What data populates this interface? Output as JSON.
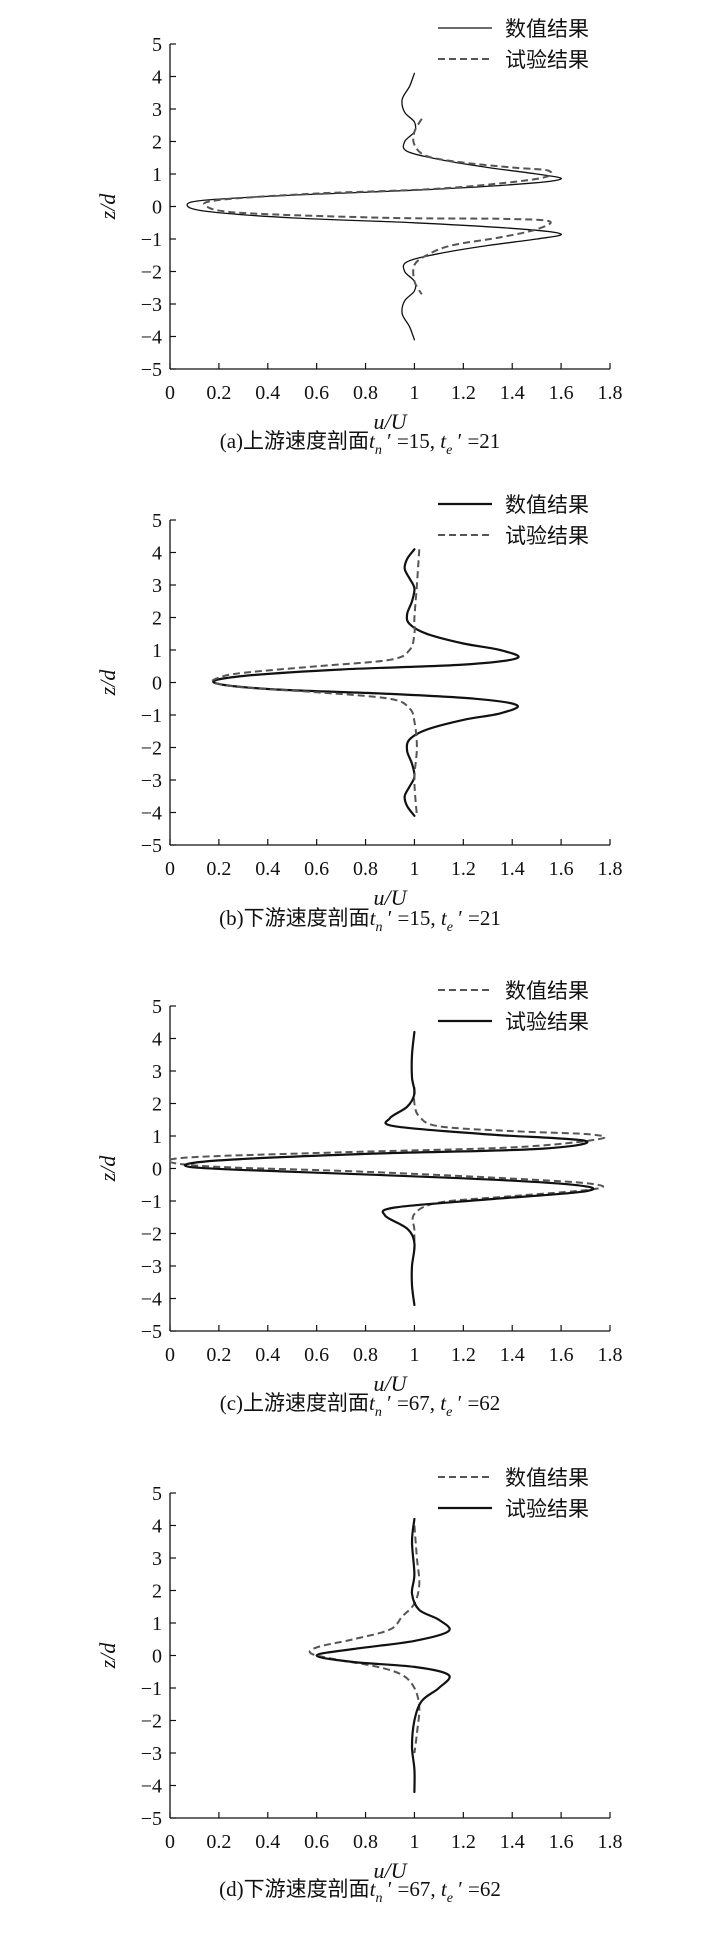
{
  "chart_data": [
    {
      "type": "line",
      "caption": "(a)上游速度剖面t",
      "caption_parts": {
        "prefix": "(a)上游速度剖面",
        "n_val": "15",
        "e_val": "21"
      },
      "xlabel": "u/U",
      "ylabel": "z/d",
      "xlim": [
        0,
        1.8
      ],
      "ylim": [
        -5,
        5
      ],
      "xticks": [
        "0",
        "0.2",
        "0.4",
        "0.6",
        "0.8",
        "1",
        "1.2",
        "1.4",
        "1.6",
        "1.8"
      ],
      "yticks": [
        "5",
        "4",
        "3",
        "2",
        "1",
        "0",
        "−1",
        "−2",
        "−3",
        "−4",
        "−5"
      ],
      "legend": "top-right",
      "series": [
        {
          "name": "数值结果",
          "style": "solid",
          "stroke_width": 1.3,
          "points": [
            [
              1.0,
              4.1
            ],
            [
              0.98,
              3.7
            ],
            [
              0.95,
              3.3
            ],
            [
              0.96,
              2.9
            ],
            [
              1.0,
              2.6
            ],
            [
              1.0,
              2.3
            ],
            [
              0.96,
              2.0
            ],
            [
              0.97,
              1.7
            ],
            [
              1.1,
              1.45
            ],
            [
              1.3,
              1.2
            ],
            [
              1.5,
              1.0
            ],
            [
              1.6,
              0.85
            ],
            [
              1.45,
              0.7
            ],
            [
              1.0,
              0.5
            ],
            [
              0.5,
              0.35
            ],
            [
              0.15,
              0.2
            ],
            [
              0.07,
              0.05
            ],
            [
              0.15,
              -0.15
            ],
            [
              0.5,
              -0.35
            ],
            [
              1.0,
              -0.5
            ],
            [
              1.45,
              -0.7
            ],
            [
              1.6,
              -0.85
            ],
            [
              1.5,
              -1.0
            ],
            [
              1.3,
              -1.2
            ],
            [
              1.1,
              -1.45
            ],
            [
              0.97,
              -1.7
            ],
            [
              0.96,
              -2.0
            ],
            [
              1.0,
              -2.3
            ],
            [
              1.0,
              -2.6
            ],
            [
              0.96,
              -2.9
            ],
            [
              0.95,
              -3.3
            ],
            [
              0.98,
              -3.7
            ],
            [
              1.0,
              -4.1
            ]
          ]
        },
        {
          "name": "试验结果",
          "style": "dashed",
          "stroke_width": 2.0,
          "points": [
            [
              1.03,
              2.7
            ],
            [
              1.0,
              2.3
            ],
            [
              1.0,
              1.9
            ],
            [
              1.05,
              1.55
            ],
            [
              1.2,
              1.35
            ],
            [
              1.4,
              1.2
            ],
            [
              1.55,
              1.1
            ],
            [
              1.5,
              0.85
            ],
            [
              1.1,
              0.55
            ],
            [
              0.6,
              0.4
            ],
            [
              0.2,
              0.2
            ],
            [
              0.15,
              0.0
            ],
            [
              0.3,
              -0.2
            ],
            [
              0.9,
              -0.35
            ],
            [
              1.35,
              -0.38
            ],
            [
              1.55,
              -0.45
            ],
            [
              1.5,
              -0.7
            ],
            [
              1.35,
              -0.95
            ],
            [
              1.15,
              -1.2
            ],
            [
              1.05,
              -1.5
            ],
            [
              1.0,
              -1.8
            ],
            [
              1.0,
              -2.3
            ],
            [
              1.03,
              -2.7
            ]
          ]
        }
      ]
    },
    {
      "type": "line",
      "caption": "(b)下游速度剖面t",
      "caption_parts": {
        "prefix": "(b)下游速度剖面",
        "n_val": "15",
        "e_val": "21"
      },
      "xlabel": "u/U",
      "ylabel": "z/d",
      "xlim": [
        0,
        1.8
      ],
      "ylim": [
        -5,
        5
      ],
      "xticks": [
        "0",
        "0.2",
        "0.4",
        "0.6",
        "0.8",
        "1",
        "1.2",
        "1.4",
        "1.6",
        "1.8"
      ],
      "yticks": [
        "5",
        "4",
        "3",
        "2",
        "1",
        "0",
        "−1",
        "−2",
        "−3",
        "−4",
        "−5"
      ],
      "legend": "top-right",
      "series": [
        {
          "name": "数值结果",
          "style": "solid",
          "stroke_width": 2.2,
          "points": [
            [
              1.0,
              4.1
            ],
            [
              0.97,
              3.8
            ],
            [
              0.96,
              3.5
            ],
            [
              0.98,
              3.2
            ],
            [
              1.0,
              2.9
            ],
            [
              0.99,
              2.5
            ],
            [
              0.97,
              2.1
            ],
            [
              0.98,
              1.8
            ],
            [
              1.05,
              1.5
            ],
            [
              1.2,
              1.2
            ],
            [
              1.35,
              1.0
            ],
            [
              1.42,
              0.75
            ],
            [
              1.2,
              0.55
            ],
            [
              0.7,
              0.4
            ],
            [
              0.3,
              0.2
            ],
            [
              0.18,
              0.0
            ],
            [
              0.4,
              -0.2
            ],
            [
              0.9,
              -0.35
            ],
            [
              1.25,
              -0.5
            ],
            [
              1.42,
              -0.7
            ],
            [
              1.35,
              -0.95
            ],
            [
              1.2,
              -1.15
            ],
            [
              1.05,
              -1.45
            ],
            [
              0.98,
              -1.75
            ],
            [
              0.97,
              -2.1
            ],
            [
              0.99,
              -2.5
            ],
            [
              1.0,
              -2.9
            ],
            [
              0.98,
              -3.2
            ],
            [
              0.96,
              -3.5
            ],
            [
              0.97,
              -3.8
            ],
            [
              1.0,
              -4.1
            ]
          ]
        },
        {
          "name": "试验结果",
          "style": "dashed",
          "stroke_width": 2.0,
          "points": [
            [
              1.02,
              4.1
            ],
            [
              1.01,
              3.0
            ],
            [
              1.0,
              2.0
            ],
            [
              1.0,
              1.5
            ],
            [
              0.98,
              1.0
            ],
            [
              0.9,
              0.7
            ],
            [
              0.6,
              0.5
            ],
            [
              0.3,
              0.3
            ],
            [
              0.2,
              0.15
            ],
            [
              0.18,
              0.0
            ],
            [
              0.3,
              -0.15
            ],
            [
              0.6,
              -0.3
            ],
            [
              0.9,
              -0.5
            ],
            [
              0.98,
              -0.8
            ],
            [
              1.0,
              -1.2
            ],
            [
              1.01,
              -2.0
            ],
            [
              1.0,
              -3.0
            ],
            [
              1.01,
              -4.1
            ]
          ]
        }
      ]
    },
    {
      "type": "line",
      "caption": "(c)上游速度剖面t",
      "caption_parts": {
        "prefix": "(c)上游速度剖面",
        "n_val": "67",
        "e_val": "62"
      },
      "xlabel": "u/U",
      "ylabel": "z/d",
      "xlim": [
        0,
        1.8
      ],
      "ylim": [
        -5,
        5
      ],
      "xticks": [
        "0",
        "0.2",
        "0.4",
        "0.6",
        "0.8",
        "1",
        "1.2",
        "1.4",
        "1.6",
        "1.8"
      ],
      "yticks": [
        "5",
        "4",
        "3",
        "2",
        "1",
        "0",
        "−1",
        "−2",
        "−3",
        "−4",
        "−5"
      ],
      "legend": "top-right",
      "series": [
        {
          "name": "数值结果",
          "style": "dashed",
          "stroke_width": 2.0,
          "points": [
            [
              1.0,
              2.5
            ],
            [
              1.0,
              2.0
            ],
            [
              1.02,
              1.6
            ],
            [
              1.1,
              1.3
            ],
            [
              1.4,
              1.15
            ],
            [
              1.72,
              1.05
            ],
            [
              1.75,
              0.9
            ],
            [
              1.4,
              0.65
            ],
            [
              0.7,
              0.5
            ],
            [
              0.1,
              0.35
            ],
            [
              0.0,
              0.2
            ],
            [
              0.2,
              0.05
            ],
            [
              0.8,
              -0.1
            ],
            [
              1.5,
              -0.35
            ],
            [
              1.75,
              -0.5
            ],
            [
              1.72,
              -0.65
            ],
            [
              1.4,
              -0.85
            ],
            [
              1.1,
              -1.05
            ],
            [
              1.0,
              -1.4
            ],
            [
              1.0,
              -1.9
            ],
            [
              1.0,
              -2.5
            ]
          ]
        },
        {
          "name": "试验结果",
          "style": "solid",
          "stroke_width": 2.2,
          "points": [
            [
              1.0,
              4.2
            ],
            [
              0.99,
              3.5
            ],
            [
              0.99,
              2.8
            ],
            [
              1.0,
              2.3
            ],
            [
              0.97,
              1.9
            ],
            [
              0.9,
              1.55
            ],
            [
              0.92,
              1.3
            ],
            [
              1.3,
              1.05
            ],
            [
              1.7,
              0.85
            ],
            [
              1.5,
              0.6
            ],
            [
              0.8,
              0.45
            ],
            [
              0.2,
              0.25
            ],
            [
              0.08,
              0.05
            ],
            [
              0.5,
              -0.1
            ],
            [
              1.2,
              -0.3
            ],
            [
              1.65,
              -0.5
            ],
            [
              1.7,
              -0.7
            ],
            [
              1.3,
              -0.95
            ],
            [
              0.92,
              -1.2
            ],
            [
              0.88,
              -1.45
            ],
            [
              0.97,
              -1.85
            ],
            [
              1.0,
              -2.3
            ],
            [
              0.99,
              -3.0
            ],
            [
              0.99,
              -3.6
            ],
            [
              1.0,
              -4.2
            ]
          ]
        }
      ]
    },
    {
      "type": "line",
      "caption": "(d)下游速度剖面t",
      "caption_parts": {
        "prefix": "(d)下游速度剖面",
        "n_val": "67",
        "e_val": "62"
      },
      "xlabel": "u/U",
      "ylabel": "z/d",
      "xlim": [
        0,
        1.8
      ],
      "ylim": [
        -5,
        5
      ],
      "xticks": [
        "0",
        "0.2",
        "0.4",
        "0.6",
        "0.8",
        "1",
        "1.2",
        "1.4",
        "1.6",
        "1.8"
      ],
      "yticks": [
        "5",
        "4",
        "3",
        "2",
        "1",
        "0",
        "−1",
        "−2",
        "−3",
        "−4",
        "−5"
      ],
      "legend": "top-right",
      "series": [
        {
          "name": "数值结果",
          "style": "dashed",
          "stroke_width": 2.0,
          "points": [
            [
              1.0,
              4.0
            ],
            [
              1.01,
              3.0
            ],
            [
              1.02,
              2.2
            ],
            [
              1.0,
              1.6
            ],
            [
              0.95,
              1.2
            ],
            [
              0.9,
              0.8
            ],
            [
              0.75,
              0.5
            ],
            [
              0.6,
              0.25
            ],
            [
              0.58,
              0.05
            ],
            [
              0.7,
              -0.15
            ],
            [
              0.85,
              -0.35
            ],
            [
              0.95,
              -0.6
            ],
            [
              1.0,
              -1.0
            ],
            [
              1.02,
              -1.6
            ],
            [
              1.01,
              -2.4
            ],
            [
              1.0,
              -3.0
            ]
          ]
        },
        {
          "name": "试验结果",
          "style": "solid",
          "stroke_width": 2.2,
          "points": [
            [
              1.0,
              4.2
            ],
            [
              0.99,
              3.5
            ],
            [
              1.0,
              2.5
            ],
            [
              0.99,
              1.9
            ],
            [
              1.02,
              1.4
            ],
            [
              1.1,
              1.1
            ],
            [
              1.14,
              0.75
            ],
            [
              1.0,
              0.45
            ],
            [
              0.75,
              0.2
            ],
            [
              0.6,
              0.0
            ],
            [
              0.75,
              -0.2
            ],
            [
              1.0,
              -0.35
            ],
            [
              1.14,
              -0.6
            ],
            [
              1.1,
              -1.0
            ],
            [
              1.03,
              -1.4
            ],
            [
              1.0,
              -2.0
            ],
            [
              0.99,
              -2.8
            ],
            [
              1.0,
              -3.5
            ],
            [
              1.0,
              -4.2
            ]
          ]
        }
      ]
    }
  ]
}
